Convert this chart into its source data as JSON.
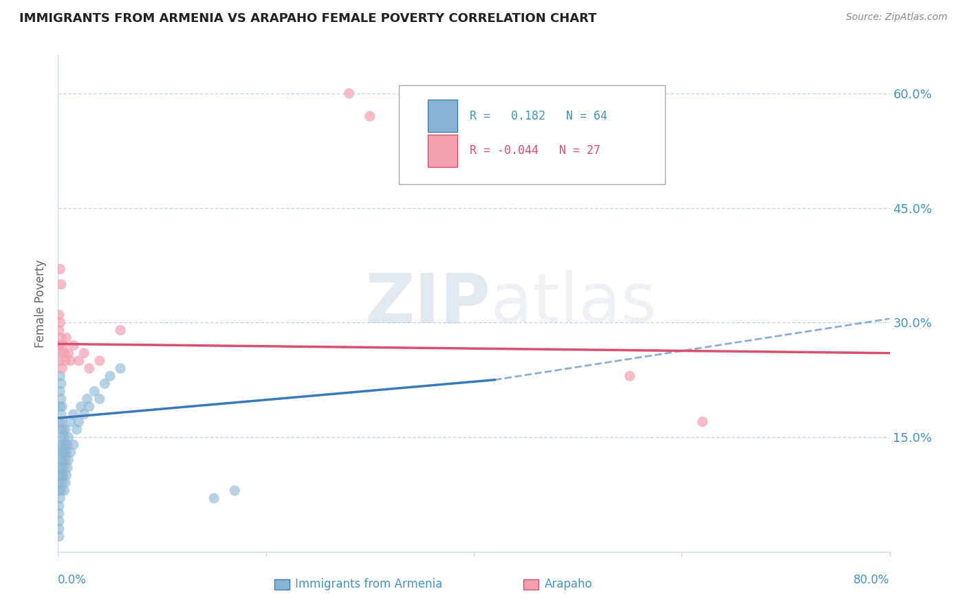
{
  "title": "IMMIGRANTS FROM ARMENIA VS ARAPAHO FEMALE POVERTY CORRELATION CHART",
  "source_text": "Source: ZipAtlas.com",
  "ylabel": "Female Poverty",
  "watermark": "ZIPatlas",
  "legend": {
    "blue_r": "0.182",
    "blue_n": "64",
    "pink_r": "-0.044",
    "pink_n": "27"
  },
  "ytick_labels": [
    "15.0%",
    "30.0%",
    "45.0%",
    "60.0%"
  ],
  "ytick_values": [
    0.15,
    0.3,
    0.45,
    0.6
  ],
  "xlim": [
    0.0,
    0.8
  ],
  "ylim": [
    0.0,
    0.65
  ],
  "blue_dots": [
    [
      0.001,
      0.08
    ],
    [
      0.001,
      0.09
    ],
    [
      0.001,
      0.11
    ],
    [
      0.002,
      0.07
    ],
    [
      0.002,
      0.1
    ],
    [
      0.002,
      0.13
    ],
    [
      0.002,
      0.17
    ],
    [
      0.002,
      0.19
    ],
    [
      0.002,
      0.21
    ],
    [
      0.002,
      0.23
    ],
    [
      0.003,
      0.08
    ],
    [
      0.003,
      0.1
    ],
    [
      0.003,
      0.12
    ],
    [
      0.003,
      0.14
    ],
    [
      0.003,
      0.16
    ],
    [
      0.003,
      0.18
    ],
    [
      0.003,
      0.2
    ],
    [
      0.003,
      0.22
    ],
    [
      0.004,
      0.09
    ],
    [
      0.004,
      0.11
    ],
    [
      0.004,
      0.13
    ],
    [
      0.004,
      0.15
    ],
    [
      0.004,
      0.17
    ],
    [
      0.004,
      0.19
    ],
    [
      0.005,
      0.1
    ],
    [
      0.005,
      0.12
    ],
    [
      0.005,
      0.14
    ],
    [
      0.005,
      0.16
    ],
    [
      0.006,
      0.08
    ],
    [
      0.006,
      0.11
    ],
    [
      0.006,
      0.13
    ],
    [
      0.006,
      0.15
    ],
    [
      0.007,
      0.09
    ],
    [
      0.007,
      0.12
    ],
    [
      0.007,
      0.14
    ],
    [
      0.007,
      0.16
    ],
    [
      0.008,
      0.1
    ],
    [
      0.008,
      0.13
    ],
    [
      0.009,
      0.11
    ],
    [
      0.009,
      0.14
    ],
    [
      0.01,
      0.12
    ],
    [
      0.01,
      0.15
    ],
    [
      0.012,
      0.13
    ],
    [
      0.012,
      0.17
    ],
    [
      0.015,
      0.14
    ],
    [
      0.015,
      0.18
    ],
    [
      0.018,
      0.16
    ],
    [
      0.02,
      0.17
    ],
    [
      0.022,
      0.19
    ],
    [
      0.025,
      0.18
    ],
    [
      0.028,
      0.2
    ],
    [
      0.03,
      0.19
    ],
    [
      0.035,
      0.21
    ],
    [
      0.04,
      0.2
    ],
    [
      0.045,
      0.22
    ],
    [
      0.05,
      0.23
    ],
    [
      0.06,
      0.24
    ],
    [
      0.001,
      0.04
    ],
    [
      0.001,
      0.05
    ],
    [
      0.001,
      0.06
    ],
    [
      0.15,
      0.07
    ],
    [
      0.17,
      0.08
    ],
    [
      0.001,
      0.03
    ],
    [
      0.001,
      0.02
    ]
  ],
  "pink_dots": [
    [
      0.001,
      0.27
    ],
    [
      0.001,
      0.29
    ],
    [
      0.001,
      0.31
    ],
    [
      0.002,
      0.25
    ],
    [
      0.002,
      0.27
    ],
    [
      0.002,
      0.3
    ],
    [
      0.003,
      0.26
    ],
    [
      0.003,
      0.28
    ],
    [
      0.004,
      0.24
    ],
    [
      0.005,
      0.27
    ],
    [
      0.006,
      0.26
    ],
    [
      0.007,
      0.25
    ],
    [
      0.008,
      0.28
    ],
    [
      0.01,
      0.26
    ],
    [
      0.012,
      0.25
    ],
    [
      0.015,
      0.27
    ],
    [
      0.02,
      0.25
    ],
    [
      0.025,
      0.26
    ],
    [
      0.03,
      0.24
    ],
    [
      0.04,
      0.25
    ],
    [
      0.06,
      0.29
    ],
    [
      0.002,
      0.37
    ],
    [
      0.003,
      0.35
    ],
    [
      0.28,
      0.6
    ],
    [
      0.3,
      0.57
    ],
    [
      0.55,
      0.23
    ],
    [
      0.62,
      0.17
    ]
  ],
  "blue_line_solid": {
    "x0": 0.0,
    "y0": 0.175,
    "x1": 0.42,
    "y1": 0.225
  },
  "blue_line_dashed": {
    "x0": 0.42,
    "y0": 0.225,
    "x1": 0.8,
    "y1": 0.305
  },
  "pink_line": {
    "x0": 0.0,
    "y0": 0.272,
    "x1": 0.8,
    "y1": 0.26
  },
  "blue_color": "#8ab4d4",
  "pink_color": "#f4a0b0",
  "blue_line_color": "#3a7ab8",
  "pink_line_color": "#d94f72",
  "title_color": "#222222",
  "tick_label_color": "#4393c3",
  "grid_color": "#c8d8e8",
  "background_color": "#ffffff"
}
